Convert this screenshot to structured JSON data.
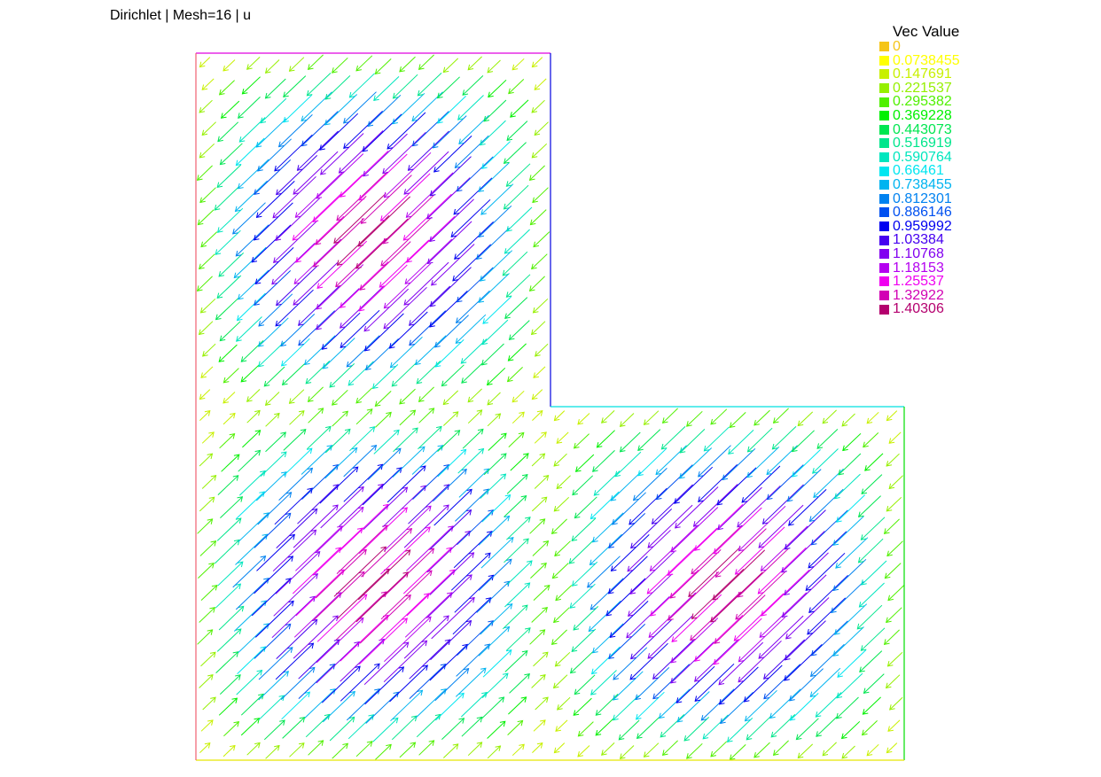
{
  "plot": {
    "title": "Dirichlet | Mesh=16 | u"
  },
  "legend": {
    "title": "Vec Value",
    "items": [
      {
        "label": "0",
        "color": "#f5c518"
      },
      {
        "label": "0.0738455",
        "color": "#ffff00"
      },
      {
        "label": "0.147691",
        "color": "#c8f000"
      },
      {
        "label": "0.221537",
        "color": "#96f000"
      },
      {
        "label": "0.295382",
        "color": "#50f000"
      },
      {
        "label": "0.369228",
        "color": "#00f000"
      },
      {
        "label": "0.443073",
        "color": "#00e650"
      },
      {
        "label": "0.516919",
        "color": "#00e68c"
      },
      {
        "label": "0.590764",
        "color": "#00e6be"
      },
      {
        "label": "0.66461",
        "color": "#00e6f0"
      },
      {
        "label": "0.738455",
        "color": "#00b4f0"
      },
      {
        "label": "0.812301",
        "color": "#0082f0"
      },
      {
        "label": "0.886146",
        "color": "#0050f0"
      },
      {
        "label": "0.959992",
        "color": "#0000f0"
      },
      {
        "label": "1.03384",
        "color": "#4600f0"
      },
      {
        "label": "1.10768",
        "color": "#8200f0"
      },
      {
        "label": "1.18153",
        "color": "#b400f0"
      },
      {
        "label": "1.25537",
        "color": "#f000f0"
      },
      {
        "label": "1.32922",
        "color": "#d200b4"
      },
      {
        "label": "1.40306",
        "color": "#b4006e"
      }
    ]
  },
  "domain": {
    "shape": "L-shaped",
    "boundary_colors": {
      "top_left_segment": "#e000e0",
      "right_upper_segment": "#0000e0",
      "inner_horizontal_segment": "#00e0e0",
      "right_lower_segment": "#00e000",
      "bottom_segment": "#e8e800",
      "left_segment": "#f06070"
    }
  },
  "chart_data": {
    "type": "vector-field",
    "title": "Dirichlet | Mesh=16 | u",
    "legend_title": "Vec Value",
    "mesh": 16,
    "value_range": [
      0,
      1.40306
    ],
    "regions": [
      {
        "name": "upper-left block",
        "direction": "down-left",
        "peak_magnitude": 1.3
      },
      {
        "name": "lower-left block",
        "direction": "up-right",
        "peak_magnitude": 1.3
      },
      {
        "name": "lower-right block",
        "direction": "down-left",
        "peak_magnitude": 1.3
      }
    ]
  }
}
